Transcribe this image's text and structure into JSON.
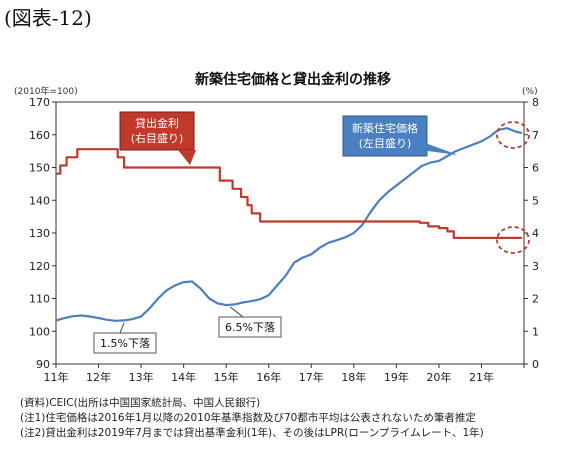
{
  "figure_heading": "(図表-12)",
  "notes": [
    "(資料)CEIC(出所は中国国家統計局、中国人民銀行)",
    "(注1)住宅価格は2016年1月以降の2010年基準指数及び70都市平均は公表されないため筆者推定",
    "(注2)貸出金利は2019年7月までは貸出基準金利(1年)、その後はLPR(ローンプライムレート、1年)"
  ],
  "chart_data": {
    "type": "line",
    "title": "新築住宅価格と貸出金利の推移",
    "ylabel_left": "(2010年=100)",
    "ylabel_right": "(%)",
    "categories": [
      "11年",
      "12年",
      "13年",
      "14年",
      "15年",
      "16年",
      "17年",
      "18年",
      "19年",
      "20年",
      "21年"
    ],
    "x_range": [
      2011,
      2022
    ],
    "ylim_left": [
      90,
      170
    ],
    "yticks_left": [
      "90",
      "100",
      "110",
      "120",
      "130",
      "140",
      "150",
      "160",
      "170"
    ],
    "ylim_right": [
      0,
      8
    ],
    "yticks_right": [
      "0",
      "1",
      "2",
      "3",
      "4",
      "5",
      "6",
      "7",
      "8"
    ],
    "grid": false,
    "series": [
      {
        "name": "新築住宅価格\n(左目盛り)",
        "axis": "left",
        "color": "#4a7fc1",
        "x": [
          2011.0,
          2011.2,
          2011.4,
          2011.6,
          2011.8,
          2012.0,
          2012.2,
          2012.4,
          2012.6,
          2012.8,
          2013.0,
          2013.2,
          2013.4,
          2013.6,
          2013.8,
          2014.0,
          2014.2,
          2014.4,
          2014.6,
          2014.8,
          2015.0,
          2015.2,
          2015.4,
          2015.6,
          2015.8,
          2016.0,
          2016.2,
          2016.4,
          2016.6,
          2016.8,
          2017.0,
          2017.2,
          2017.4,
          2017.6,
          2017.8,
          2018.0,
          2018.2,
          2018.4,
          2018.6,
          2018.8,
          2019.0,
          2019.2,
          2019.4,
          2019.6,
          2019.8,
          2020.0,
          2020.2,
          2020.4,
          2020.6,
          2020.8,
          2021.0,
          2021.2,
          2021.4,
          2021.6,
          2021.8,
          2021.95
        ],
        "values": [
          103.3,
          104.0,
          104.6,
          104.8,
          104.5,
          104.0,
          103.5,
          103.2,
          103.3,
          103.7,
          104.5,
          107.0,
          110.0,
          112.5,
          114.0,
          115.0,
          115.2,
          113.0,
          110.0,
          108.5,
          108.0,
          108.2,
          108.8,
          109.2,
          109.8,
          111.0,
          114.0,
          117.0,
          121.0,
          122.5,
          123.5,
          125.5,
          127.0,
          127.8,
          128.7,
          130.0,
          132.5,
          136.5,
          140.0,
          142.5,
          144.5,
          146.5,
          148.5,
          150.5,
          151.5,
          152.0,
          153.5,
          155.0,
          156.0,
          157.0,
          158.0,
          159.5,
          161.5,
          162.0,
          161.0,
          160.5
        ]
      },
      {
        "name": "貸出金利\n(右目盛り)",
        "axis": "right",
        "color": "#c0392b",
        "x": [
          2011.0,
          2011.1,
          2011.1,
          2011.25,
          2011.25,
          2011.5,
          2011.5,
          2012.45,
          2012.45,
          2012.6,
          2012.6,
          2014.85,
          2014.85,
          2015.15,
          2015.15,
          2015.35,
          2015.35,
          2015.5,
          2015.5,
          2015.6,
          2015.6,
          2015.8,
          2015.8,
          2019.55,
          2019.55,
          2019.75,
          2019.75,
          2020.0,
          2020.0,
          2020.2,
          2020.2,
          2020.35,
          2020.35,
          2021.95
        ],
        "values": [
          5.81,
          5.81,
          6.06,
          6.06,
          6.31,
          6.31,
          6.56,
          6.56,
          6.31,
          6.31,
          6.0,
          6.0,
          5.6,
          5.6,
          5.35,
          5.35,
          5.1,
          5.1,
          4.85,
          4.85,
          4.6,
          4.6,
          4.35,
          4.35,
          4.31,
          4.31,
          4.2,
          4.2,
          4.15,
          4.15,
          4.05,
          4.05,
          3.85,
          3.85
        ]
      }
    ],
    "annotations": [
      {
        "text": "1.5%下落",
        "x": 2012.6,
        "y_left": 103.2
      },
      {
        "text": "6.5%下落",
        "x": 2015.1,
        "y_left": 108.0
      }
    ],
    "callout_colors": {
      "blue": "#4a7fc1",
      "red": "#c0392b"
    }
  }
}
